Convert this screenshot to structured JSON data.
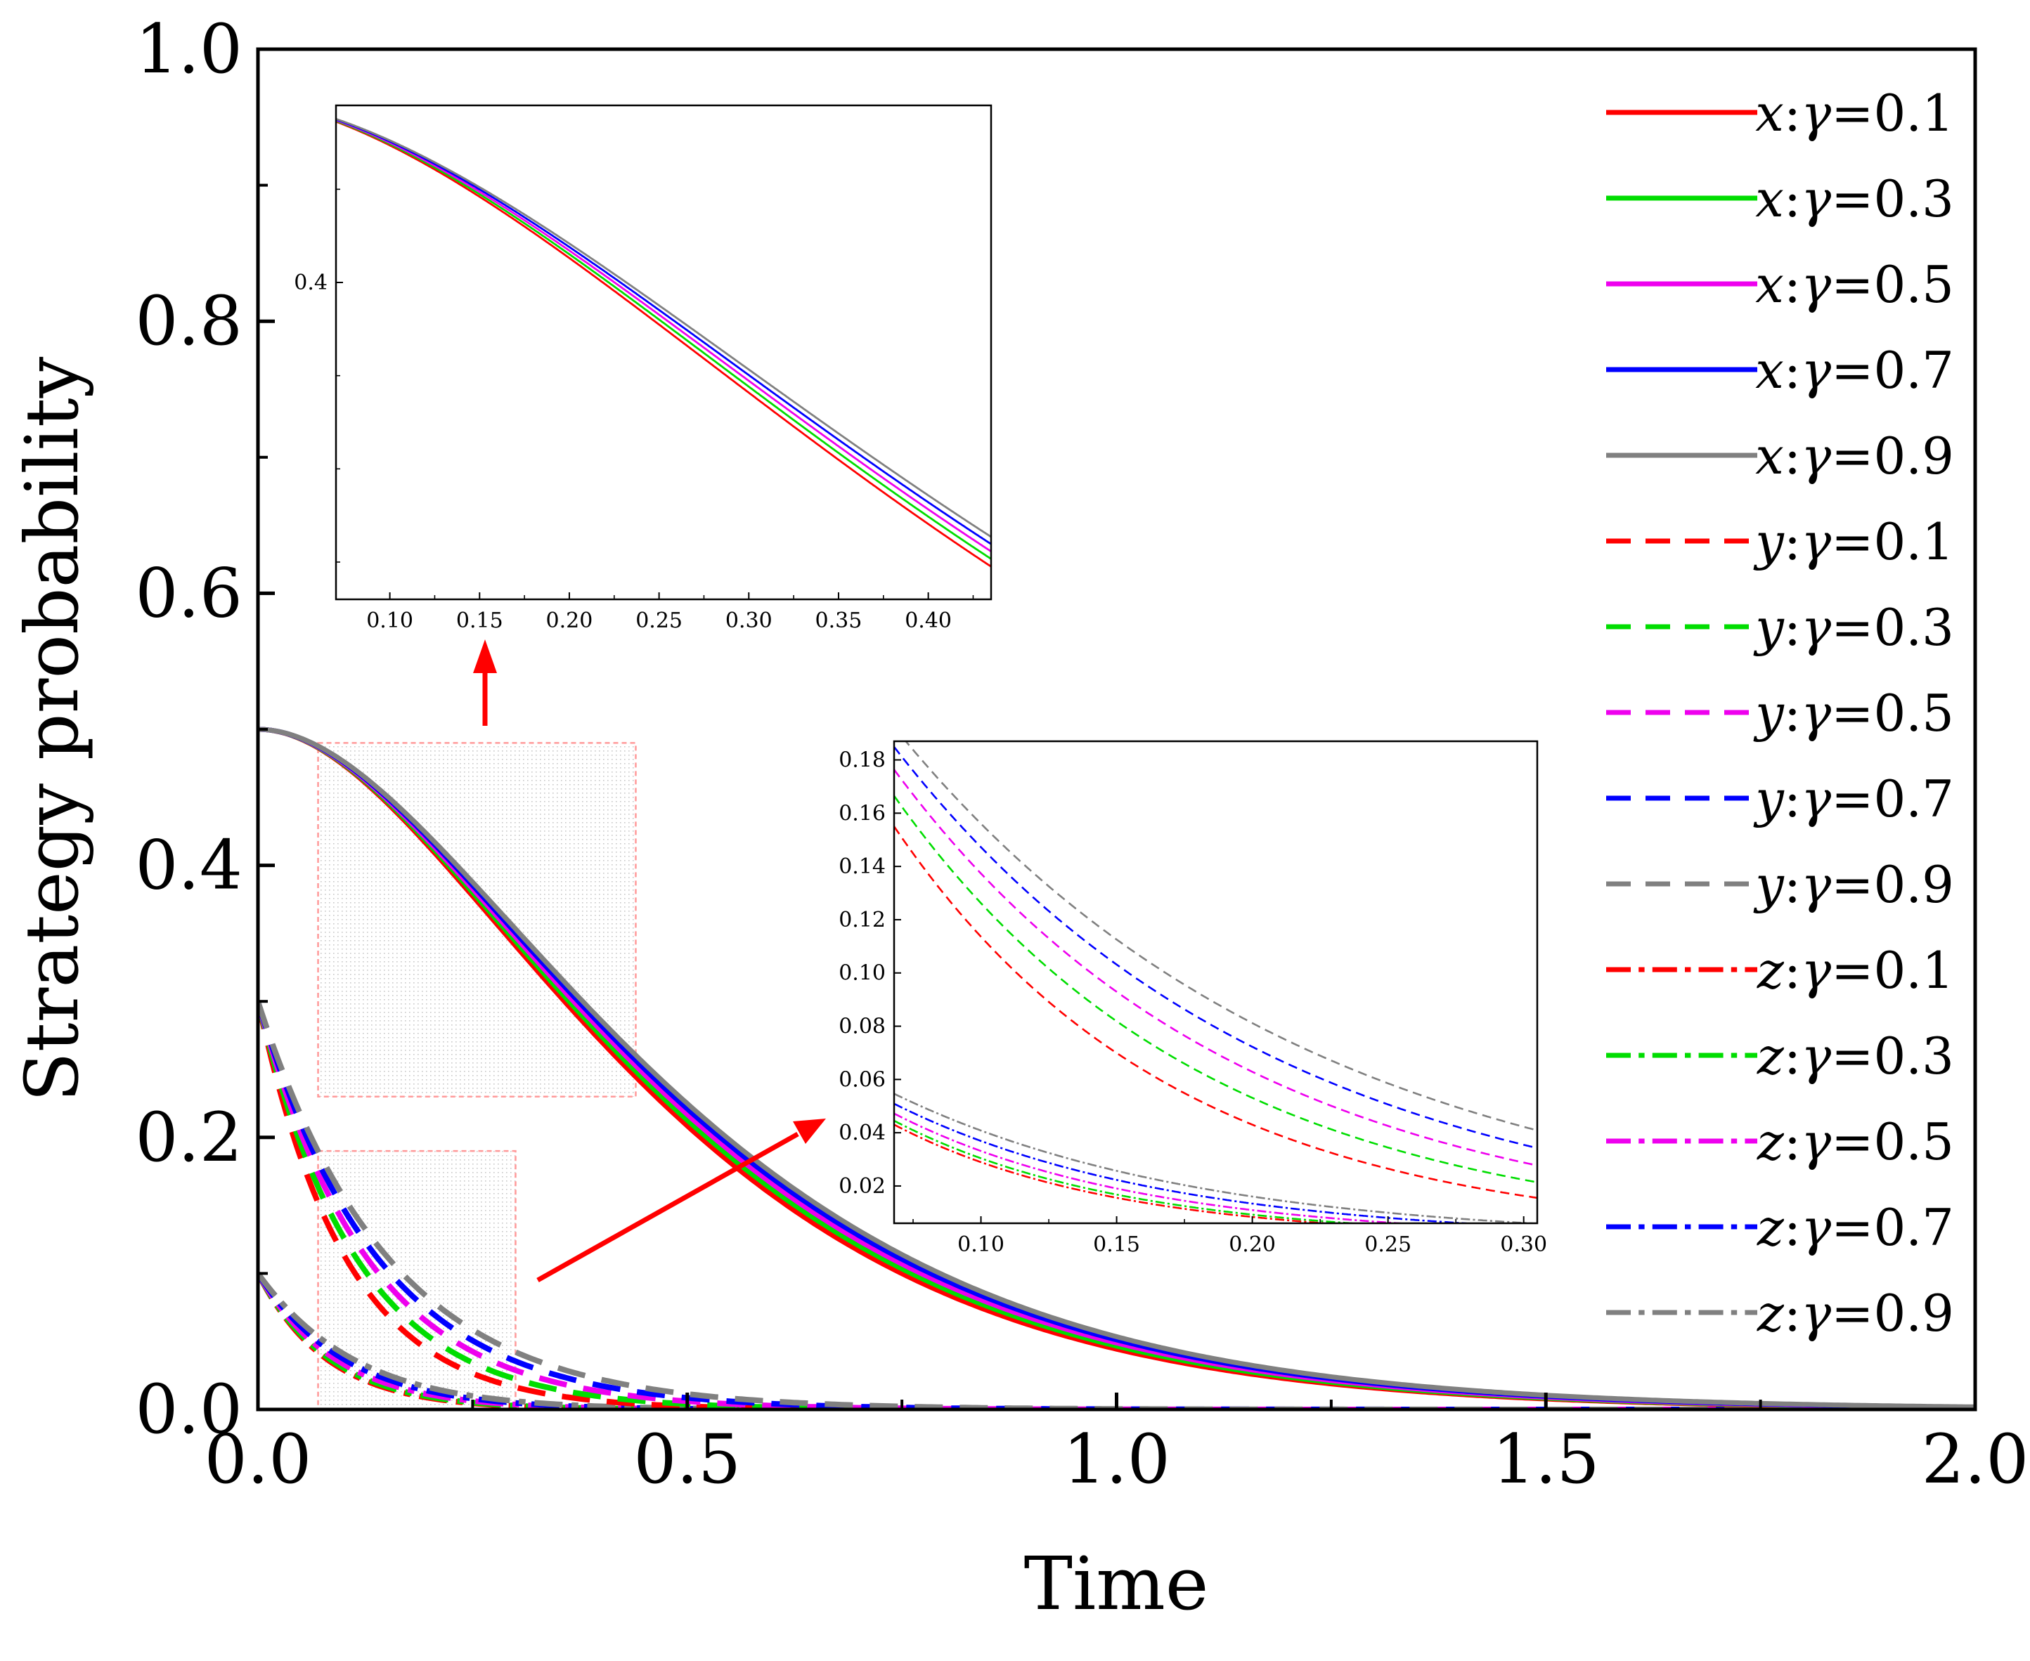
{
  "chart_data": [
    {
      "type": "line",
      "id": "main",
      "title": "",
      "xlabel": "Time",
      "ylabel": "Strategy probability",
      "xlim": [
        0,
        2.0
      ],
      "ylim": [
        0,
        1.0
      ],
      "xticks": [
        0.0,
        0.5,
        1.0,
        1.5,
        2.0
      ],
      "xtick_labels": [
        "0.0",
        "0.5",
        "1.0",
        "1.5",
        "2.0"
      ],
      "yticks": [
        0.0,
        0.2,
        0.4,
        0.6,
        0.8,
        1.0
      ],
      "ytick_labels": [
        "0.0",
        "0.2",
        "0.4",
        "0.6",
        "0.8",
        "1.0"
      ],
      "x_minor_step": 0.25,
      "y_minor_step": 0.1,
      "grid": false,
      "legend_position": "right",
      "colors": {
        "0.1": "#ff0000",
        "0.3": "#00dd00",
        "0.5": "#ee00ee",
        "0.7": "#0000ff",
        "0.9": "#808080"
      },
      "series": [
        {
          "name": "x:γ=0.1",
          "var": "x",
          "gamma": "0.1",
          "style": "solid"
        },
        {
          "name": "x:γ=0.3",
          "var": "x",
          "gamma": "0.3",
          "style": "solid"
        },
        {
          "name": "x:γ=0.5",
          "var": "x",
          "gamma": "0.5",
          "style": "solid"
        },
        {
          "name": "x:γ=0.7",
          "var": "x",
          "gamma": "0.7",
          "style": "solid"
        },
        {
          "name": "x:γ=0.9",
          "var": "x",
          "gamma": "0.9",
          "style": "solid"
        },
        {
          "name": "y:γ=0.1",
          "var": "y",
          "gamma": "0.1",
          "style": "dashed"
        },
        {
          "name": "y:γ=0.3",
          "var": "y",
          "gamma": "0.3",
          "style": "dashed"
        },
        {
          "name": "y:γ=0.5",
          "var": "y",
          "gamma": "0.5",
          "style": "dashed"
        },
        {
          "name": "y:γ=0.7",
          "var": "y",
          "gamma": "0.7",
          "style": "dashed"
        },
        {
          "name": "y:γ=0.9",
          "var": "y",
          "gamma": "0.9",
          "style": "dashed"
        },
        {
          "name": "z:γ=0.1",
          "var": "z",
          "gamma": "0.1",
          "style": "dashdot"
        },
        {
          "name": "z:γ=0.3",
          "var": "z",
          "gamma": "0.3",
          "style": "dashdot"
        },
        {
          "name": "z:γ=0.5",
          "var": "z",
          "gamma": "0.5",
          "style": "dashdot"
        },
        {
          "name": "z:γ=0.7",
          "var": "z",
          "gamma": "0.7",
          "style": "dashdot"
        },
        {
          "name": "z:γ=0.9",
          "var": "z",
          "gamma": "0.9",
          "style": "dashdot"
        }
      ],
      "zoom_regions": [
        {
          "xlim": [
            0.07,
            0.44
          ],
          "ylim": [
            0.23,
            0.49
          ],
          "target": "inset-x"
        },
        {
          "xlim": [
            0.07,
            0.3
          ],
          "ylim": [
            0.0,
            0.19
          ],
          "target": "inset-yz"
        }
      ]
    },
    {
      "type": "line",
      "id": "inset-x",
      "xlim": [
        0.07,
        0.435
      ],
      "ylim": [
        0.23,
        0.495
      ],
      "xticks": [
        0.1,
        0.15,
        0.2,
        0.25,
        0.3,
        0.35,
        0.4
      ],
      "xtick_labels": [
        "0.10",
        "0.15",
        "0.20",
        "0.25",
        "0.30",
        "0.35",
        "0.40"
      ],
      "yticks": [
        0.4
      ],
      "ytick_labels": [
        "0.4"
      ],
      "series": [
        "x:γ=0.1",
        "x:γ=0.3",
        "x:γ=0.5",
        "x:γ=0.7",
        "x:γ=0.9"
      ]
    },
    {
      "type": "line",
      "id": "inset-yz",
      "xlim": [
        0.068,
        0.305
      ],
      "ylim": [
        0.006,
        0.187
      ],
      "xticks": [
        0.1,
        0.15,
        0.2,
        0.25,
        0.3
      ],
      "xtick_labels": [
        "0.10",
        "0.15",
        "0.20",
        "0.25",
        "0.30"
      ],
      "yticks": [
        0.02,
        0.04,
        0.06,
        0.08,
        0.1,
        0.12,
        0.14,
        0.16,
        0.18
      ],
      "ytick_labels": [
        "0.02",
        "0.04",
        "0.06",
        "0.08",
        "0.10",
        "0.12",
        "0.14",
        "0.16",
        "0.18"
      ],
      "series": [
        "y:γ=0.1",
        "y:γ=0.3",
        "y:γ=0.5",
        "y:γ=0.7",
        "y:γ=0.9",
        "z:γ=0.1",
        "z:γ=0.3",
        "z:γ=0.5",
        "z:γ=0.7",
        "z:γ=0.9"
      ]
    }
  ]
}
